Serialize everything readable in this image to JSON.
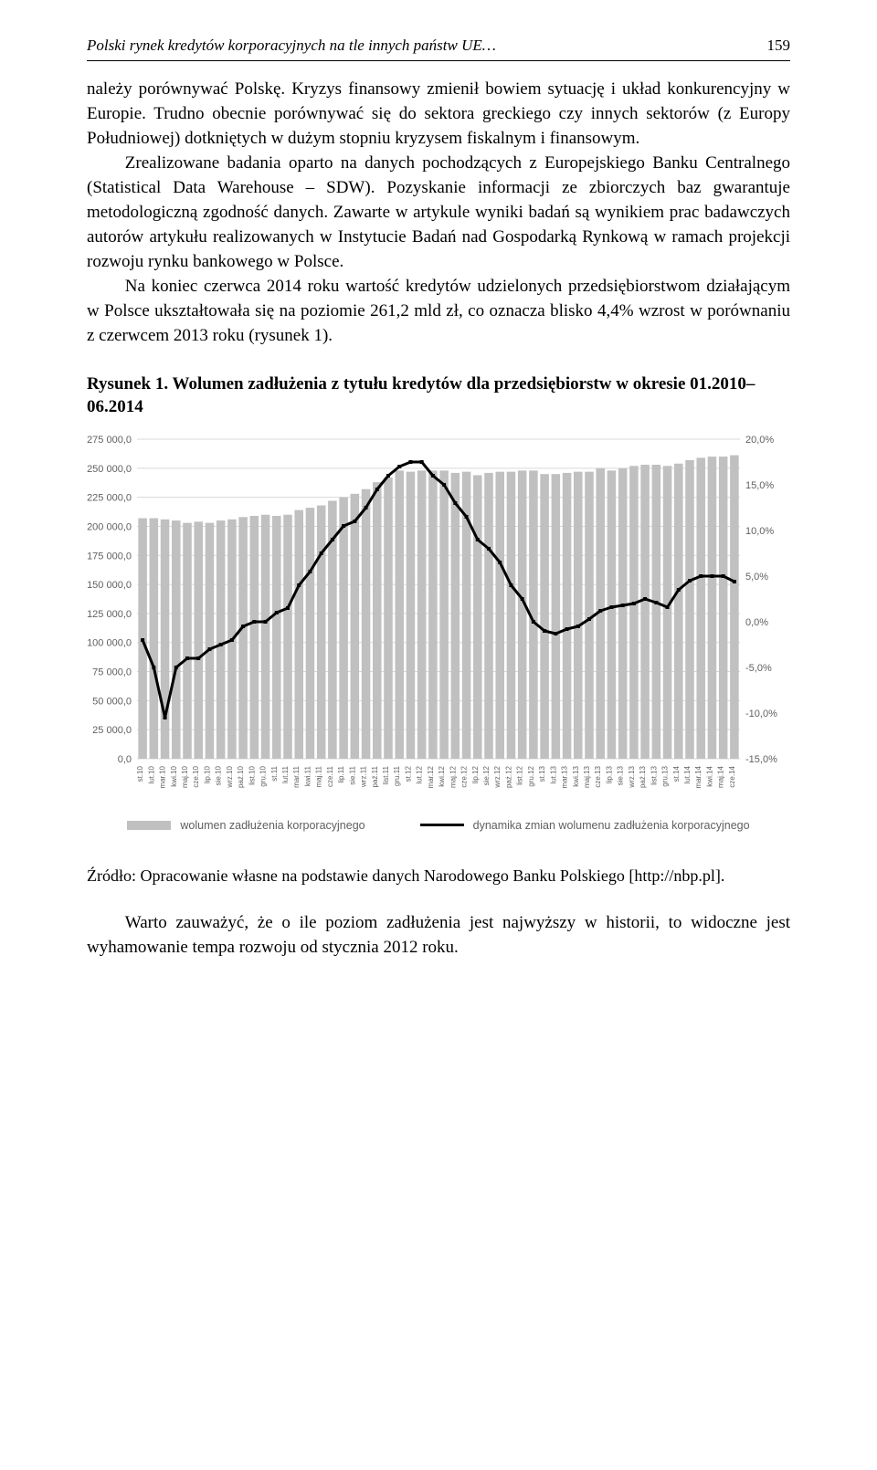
{
  "header": {
    "running_title": "Polski rynek kredytów korporacyjnych na tle innych państw UE…",
    "page_number": "159"
  },
  "paragraphs": {
    "p1": "należy porównywać Polskę. Kryzys finansowy zmienił bowiem sytuację i układ konkurencyjny w Europie. Trudno obecnie porównywać się do sektora greckiego czy innych sektorów (z Europy Południowej) dotkniętych w dużym stopniu kryzysem fiskalnym i finansowym.",
    "p2": "Zrealizowane badania oparto na danych pochodzących z Europejskiego Banku Centralnego (Statistical Data Warehouse – SDW). Pozyskanie informacji ze zbiorczych baz gwarantuje metodologiczną zgodność danych. Zawarte w artykule wyniki badań są wynikiem prac badawczych autorów artykułu realizowanych w Instytucie Badań nad Gospodarką Rynkową w ramach projekcji rozwoju rynku bankowego w Polsce.",
    "p3": "Na koniec czerwca 2014 roku wartość kredytów udzielonych przedsiębiorstwom działającym w Polsce ukształtowała się na poziomie 261,2 mld zł, co oznacza blisko 4,4% wzrost w porównaniu z czerwcem 2013 roku (rysunek 1)."
  },
  "figure": {
    "caption": "Rysunek 1. Wolumen zadłużenia z tytułu kredytów dla przedsiębiorstw w okresie 01.2010–06.2014",
    "type": "bar+line",
    "x_labels": [
      "st.10",
      "lut.10",
      "mar.10",
      "kwi.10",
      "maj.10",
      "cze.10",
      "lip.10",
      "sie.10",
      "wrz.10",
      "paź.10",
      "list.10",
      "gru.10",
      "st.11",
      "lut.11",
      "mar.11",
      "kwi.11",
      "maj.11",
      "cze.11",
      "lip.11",
      "sie.11",
      "wrz.11",
      "paź.11",
      "list.11",
      "gru.11",
      "st.12",
      "lut.12",
      "mar.12",
      "kwi.12",
      "maj.12",
      "cze.12",
      "lip.12",
      "sie.12",
      "wrz.12",
      "paź.12",
      "list.12",
      "gru.12",
      "st.13",
      "lut.13",
      "mar.13",
      "kwi.13",
      "maj.13",
      "cze.13",
      "lip.13",
      "sie.13",
      "wrz.13",
      "paź.13",
      "list.13",
      "gru.13",
      "st.14",
      "lut.14",
      "mar.14",
      "kwi.14",
      "maj.14",
      "cze.14"
    ],
    "bars": [
      207000,
      207000,
      206000,
      205000,
      203000,
      204000,
      203000,
      205000,
      206000,
      208000,
      209000,
      210000,
      209000,
      210000,
      214000,
      216000,
      218000,
      222000,
      225000,
      228000,
      232000,
      238000,
      242000,
      248000,
      247000,
      248000,
      248000,
      248000,
      246000,
      247000,
      244000,
      246000,
      247000,
      247000,
      248000,
      248000,
      245000,
      245000,
      246000,
      247000,
      247000,
      250000,
      248000,
      250000,
      252000,
      253000,
      253000,
      252000,
      254000,
      257000,
      259000,
      260000,
      260000,
      261200
    ],
    "line_pct": [
      -2.0,
      -5.0,
      -10.5,
      -5.0,
      -4.0,
      -4.0,
      -3.0,
      -2.5,
      -2.0,
      -0.5,
      0.0,
      0.0,
      1.0,
      1.5,
      4.0,
      5.5,
      7.5,
      9.0,
      10.5,
      11.0,
      12.5,
      14.5,
      16.0,
      17.0,
      17.5,
      17.5,
      16.0,
      15.0,
      13.0,
      11.5,
      9.0,
      8.0,
      6.5,
      4.0,
      2.5,
      0.0,
      -1.0,
      -1.3,
      -0.8,
      -0.5,
      0.3,
      1.2,
      1.6,
      1.8,
      2.0,
      2.5,
      2.1,
      1.6,
      3.5,
      4.5,
      5.0,
      5.0,
      5.0,
      4.4
    ],
    "left_axis": {
      "min": 0,
      "max": 275000,
      "step": 25000,
      "labels": [
        "0,0",
        "25 000,0",
        "50 000,0",
        "75 000,0",
        "100 000,0",
        "125 000,0",
        "150 000,0",
        "175 000,0",
        "200 000,0",
        "225 000,0",
        "250 000,0",
        "275 000,0"
      ]
    },
    "right_axis": {
      "min": -15,
      "max": 20,
      "step": 5,
      "labels": [
        "-15,0%",
        "-10,0%",
        "-5,0%",
        "0,0%",
        "5,0%",
        "10,0%",
        "15,0%",
        "20,0%"
      ]
    },
    "colors": {
      "bar": "#c0c0c0",
      "line": "#000000",
      "grid": "#d9d9d9",
      "axis_text": "#606060",
      "background": "#ffffff"
    },
    "line_width": 3,
    "legend": {
      "bar_label": "wolumen zadłużenia korporacyjnego",
      "line_label": "dynamika zmian wolumenu zadłużenia korporacyjnego"
    }
  },
  "source": "Źródło: Opracowanie własne na podstawie danych Narodowego Banku Polskiego [http://nbp.pl].",
  "final_paragraph": "Warto zauważyć, że o ile poziom zadłużenia jest najwyższy w historii, to widoczne jest wyhamowanie tempa rozwoju od stycznia 2012 roku."
}
